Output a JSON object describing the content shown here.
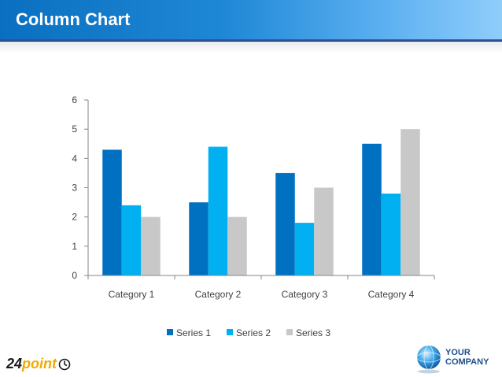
{
  "header": {
    "title": "Column Chart"
  },
  "colors": {
    "series1": "#0070C0",
    "series2": "#00B0F0",
    "series3": "#C8C8C8",
    "axis": "#868686"
  },
  "chart_data": {
    "type": "bar",
    "title": "",
    "xlabel": "",
    "ylabel": "",
    "categories": [
      "Category 1",
      "Category 2",
      "Category 3",
      "Category 4"
    ],
    "series": [
      {
        "name": "Series 1",
        "values": [
          4.3,
          2.5,
          3.5,
          4.5
        ]
      },
      {
        "name": "Series 2",
        "values": [
          2.4,
          4.4,
          1.8,
          2.8
        ]
      },
      {
        "name": "Series 3",
        "values": [
          2.0,
          2.0,
          3.0,
          5.0
        ]
      }
    ],
    "ylim": [
      0,
      6
    ],
    "yticks": [
      0,
      1,
      2,
      3,
      4,
      5,
      6
    ],
    "grid": false,
    "legend_position": "bottom"
  },
  "footer": {
    "brand_number": "24",
    "brand_word": "point",
    "company_line1": "YOUR",
    "company_line2": "COMPANY"
  }
}
